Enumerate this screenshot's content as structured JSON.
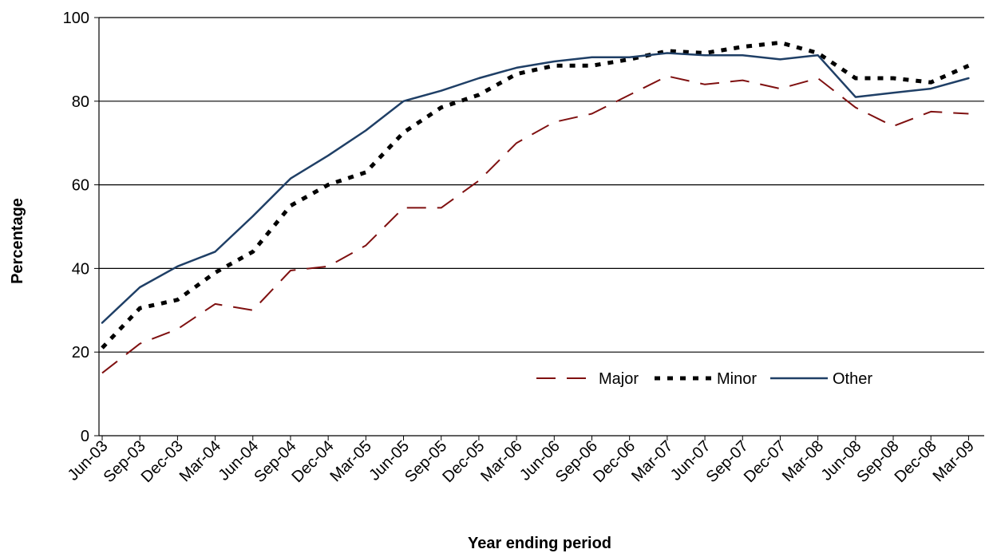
{
  "chart_data": {
    "type": "line",
    "xlabel": "Year ending period",
    "ylabel": "Percentage",
    "ylim": [
      0,
      100
    ],
    "yticks": [
      0,
      20,
      40,
      60,
      80,
      100
    ],
    "grid": true,
    "legend_position": "bottom-right",
    "categories": [
      "Jun-03",
      "Sep-03",
      "Dec-03",
      "Mar-04",
      "Jun-04",
      "Sep-04",
      "Dec-04",
      "Mar-05",
      "Jun-05",
      "Sep-05",
      "Dec-05",
      "Mar-06",
      "Jun-06",
      "Sep-06",
      "Dec-06",
      "Mar-07",
      "Jun-07",
      "Sep-07",
      "Dec-07",
      "Mar-08",
      "Jun-08",
      "Sep-08",
      "Dec-08",
      "Mar-09"
    ],
    "series": [
      {
        "name": "Major",
        "color": "#7f1010",
        "style": "long-dash",
        "values": [
          15,
          22,
          25.5,
          31.5,
          30,
          39.5,
          40.5,
          45.5,
          54.5,
          54.5,
          61,
          70,
          75,
          77,
          81.5,
          86,
          84,
          85,
          83,
          85.5,
          78.5,
          74,
          77.5,
          77
        ]
      },
      {
        "name": "Minor",
        "color": "#000000",
        "style": "short-dash",
        "values": [
          21,
          30.5,
          32.5,
          39,
          44,
          55,
          60,
          63,
          72.5,
          78.5,
          81.5,
          86.5,
          88.5,
          88.5,
          90,
          92,
          91.5,
          93,
          94,
          91.5,
          85.5,
          85.5,
          84.5,
          88.5
        ]
      },
      {
        "name": "Other",
        "color": "#1f3f66",
        "style": "solid",
        "values": [
          27,
          35.5,
          40.5,
          44,
          52.5,
          61.5,
          67,
          73,
          80,
          82.5,
          85.5,
          88,
          89.5,
          90.5,
          90.5,
          91.5,
          91,
          91,
          90,
          91,
          81,
          82,
          83,
          85.5
        ]
      }
    ]
  }
}
